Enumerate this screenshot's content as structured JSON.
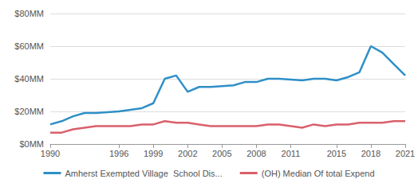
{
  "chart_data": {
    "type": "line",
    "x": [
      1990,
      1991,
      1992,
      1993,
      1994,
      1995,
      1996,
      1997,
      1998,
      1999,
      2000,
      2001,
      2002,
      2003,
      2004,
      2005,
      2006,
      2007,
      2008,
      2009,
      2010,
      2011,
      2012,
      2013,
      2014,
      2015,
      2016,
      2017,
      2018,
      2019,
      2020,
      2021
    ],
    "series": [
      {
        "name": "Amherst Exempted Village  School Dis...",
        "color": "#2f8fc8",
        "values": [
          12,
          14,
          17,
          19,
          19,
          19.5,
          20,
          21,
          22,
          25,
          40,
          42,
          32,
          35,
          35,
          35.5,
          36,
          38,
          38,
          40,
          40,
          39.5,
          39,
          40,
          40,
          39,
          41,
          44,
          60,
          56,
          49,
          42
        ]
      },
      {
        "name": "(OH) Median Of total Expend",
        "color": "#d9606b",
        "values": [
          7,
          7,
          9,
          10,
          11,
          11,
          11,
          11,
          12,
          12,
          14,
          13,
          13,
          12,
          11,
          11,
          11,
          11,
          11,
          12,
          12,
          11,
          10,
          12,
          11,
          12,
          12,
          13,
          13,
          13,
          14,
          14
        ]
      }
    ],
    "xlim": [
      1990,
      2021
    ],
    "xticks": [
      1990,
      1996,
      1999,
      2002,
      2005,
      2008,
      2011,
      2015,
      2018,
      2021
    ],
    "ylim": [
      0,
      80
    ],
    "yticks": [
      {
        "value": 0,
        "label": "$0MM"
      },
      {
        "value": 20,
        "label": "$20MM"
      },
      {
        "value": 40,
        "label": "$40MM"
      },
      {
        "value": 60,
        "label": "$60MM"
      },
      {
        "value": 80,
        "label": "$80MM"
      }
    ],
    "grid": true,
    "legend": "bottom",
    "marker": "none"
  }
}
